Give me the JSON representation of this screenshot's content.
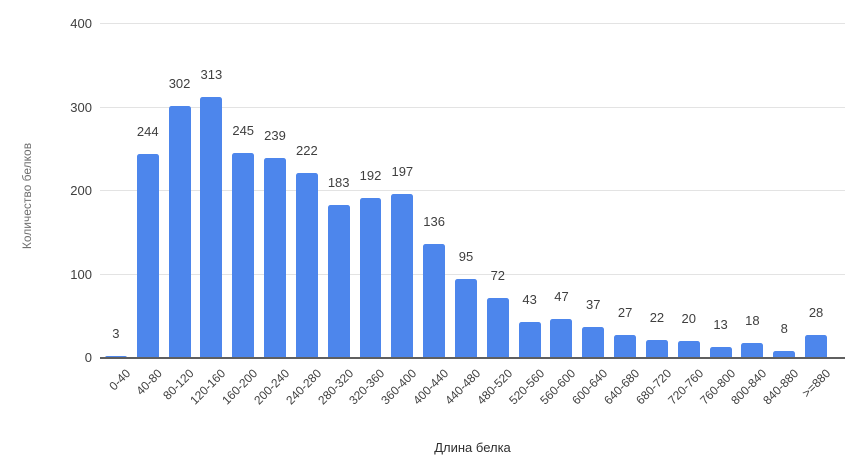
{
  "chart_data": {
    "type": "bar",
    "categories": [
      "0-40",
      "40-80",
      "80-120",
      "120-160",
      "160-200",
      "200-240",
      "240-280",
      "280-320",
      "320-360",
      "360-400",
      "400-440",
      "440-480",
      "480-520",
      "520-560",
      "560-600",
      "600-640",
      "640-680",
      "680-720",
      "720-760",
      "760-800",
      "800-840",
      "840-880",
      ">=880"
    ],
    "values": [
      3,
      244,
      302,
      313,
      245,
      239,
      222,
      183,
      192,
      197,
      136,
      95,
      72,
      43,
      47,
      37,
      27,
      22,
      20,
      13,
      18,
      8,
      28
    ],
    "xlabel": "Длина белка",
    "ylabel": "Количество белков",
    "ylim": [
      0,
      400
    ],
    "yticks": [
      0,
      100,
      200,
      300,
      400
    ],
    "grid": true,
    "legend": "none",
    "value_labels": true
  },
  "colors": {
    "bar": "#4d86ec",
    "grid": "#e3e3e3",
    "axis_line": "#5f5f5f",
    "tick_text": "#404040",
    "value_text": "#3f3f3f",
    "y_title_text": "#6f6f6f",
    "x_title_text": "#2e2e2e",
    "background": "#ffffff"
  }
}
